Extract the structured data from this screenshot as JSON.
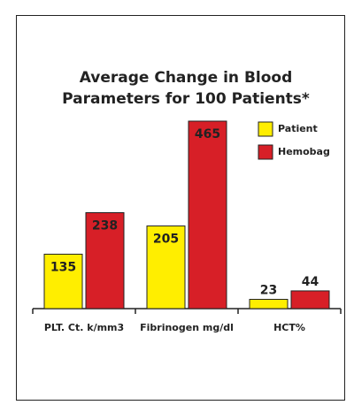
{
  "chart_data": {
    "type": "bar",
    "title": "Average Change in Blood Parameters for 100 Patients*",
    "categories": [
      "PLT. Ct. k/mm3",
      "Fibrinogen mg/dl",
      "HCT%"
    ],
    "series": [
      {
        "name": "Patient",
        "color": "#ffee00",
        "values": [
          135,
          205,
          23
        ]
      },
      {
        "name": "Hemobag",
        "color": "#d71f27",
        "values": [
          238,
          465,
          44
        ]
      }
    ],
    "legend": "top-right"
  }
}
